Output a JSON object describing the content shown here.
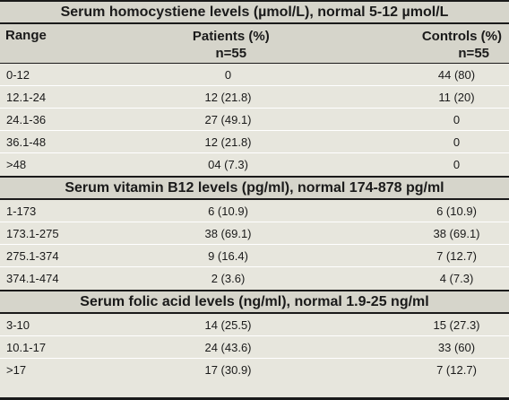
{
  "header": {
    "range": "Range",
    "patients_label": "Patients (%)",
    "patients_n": "n=55",
    "controls_label": "Controls (%)",
    "controls_n": "n=55"
  },
  "sections": [
    {
      "title": "Serum homocystiene levels (µmol/L), normal 5-12 µmol/L",
      "rows": [
        {
          "range": "0-12",
          "patients": "0",
          "controls": "44 (80)"
        },
        {
          "range": "12.1-24",
          "patients": "12 (21.8)",
          "controls": "11 (20)"
        },
        {
          "range": "24.1-36",
          "patients": "27 (49.1)",
          "controls": "0"
        },
        {
          "range": "36.1-48",
          "patients": "12 (21.8)",
          "controls": "0"
        },
        {
          "range": ">48",
          "patients": "04 (7.3)",
          "controls": "0"
        }
      ]
    },
    {
      "title": "Serum vitamin B12 levels (pg/ml), normal 174-878 pg/ml",
      "rows": [
        {
          "range": "1-173",
          "patients": "6 (10.9)",
          "controls": "6 (10.9)"
        },
        {
          "range": "173.1-275",
          "patients": "38 (69.1)",
          "controls": "38 (69.1)"
        },
        {
          "range": "275.1-374",
          "patients": "9 (16.4)",
          "controls": "7 (12.7)"
        },
        {
          "range": "374.1-474",
          "patients": "2 (3.6)",
          "controls": "4 (7.3)"
        }
      ]
    },
    {
      "title": "Serum folic acid levels (ng/ml), normal 1.9-25 ng/ml",
      "rows": [
        {
          "range": "3-10",
          "patients": "14 (25.5)",
          "controls": "15 (27.3)"
        },
        {
          "range": "10.1-17",
          "patients": "24 (43.6)",
          "controls": "33 (60)"
        },
        {
          "range": ">17",
          "patients": "17 (30.9)",
          "controls": "7 (12.7)"
        }
      ]
    }
  ]
}
